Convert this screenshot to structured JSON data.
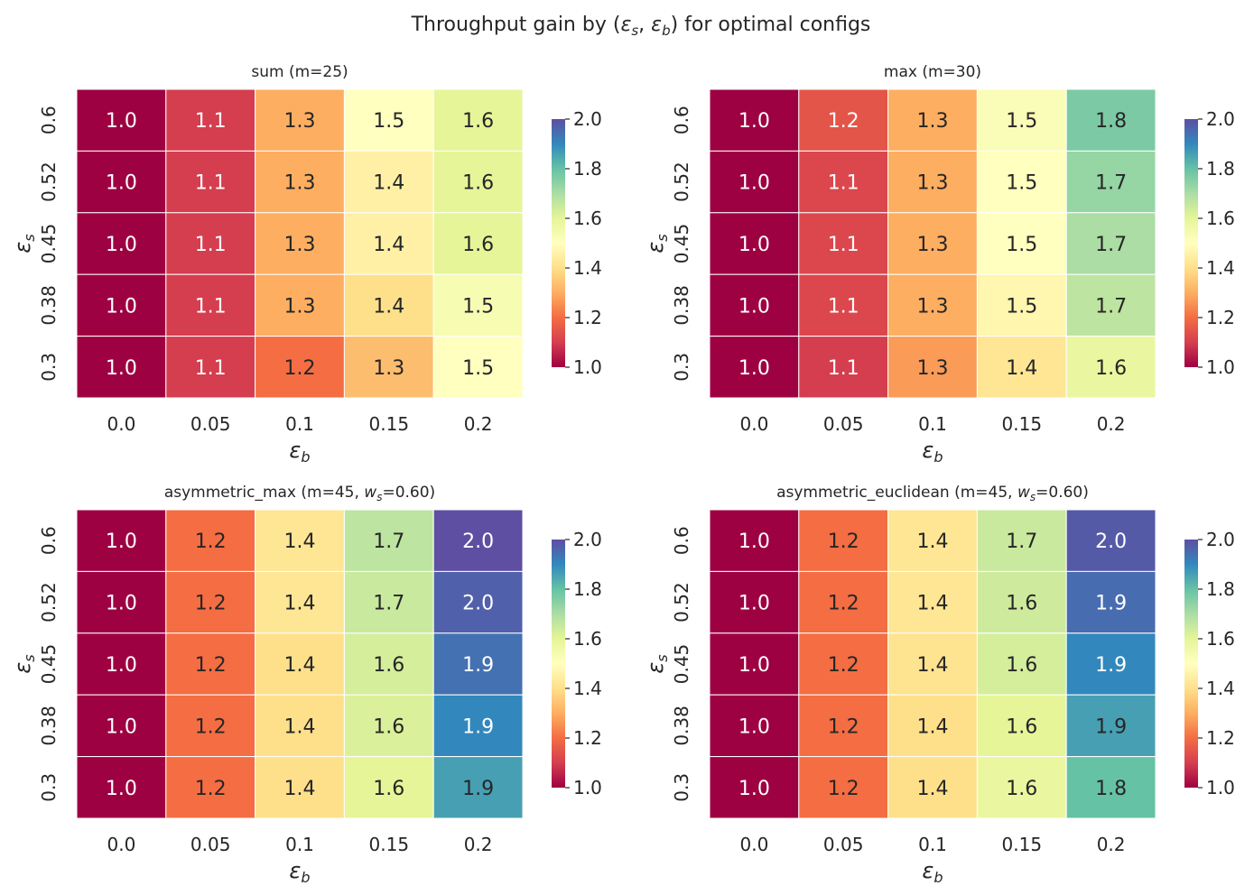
{
  "figure_title": {
    "prefix": "Throughput gain by (",
    "sym_s": "ε",
    "sub_s": "s",
    "sep": ", ",
    "sym_b": "ε",
    "sub_b": "b",
    "suffix": ") for optimal configs"
  },
  "colormap": {
    "name": "Spectral",
    "stops": [
      "#9e0142",
      "#d53e4f",
      "#f46d43",
      "#fdae61",
      "#fee08b",
      "#ffffbf",
      "#e6f598",
      "#abdda4",
      "#66c2a5",
      "#3288bd",
      "#5e4fa2"
    ]
  },
  "chart_data": [
    {
      "type": "heatmap",
      "title": {
        "prefix": "sum  (m=25)",
        "w_sym": "",
        "w_sub": "",
        "w_val": ""
      },
      "xlabel": {
        "sym": "ε",
        "sub": "b"
      },
      "ylabel": {
        "sym": "ε",
        "sub": "s"
      },
      "x_categories": [
        "0.0",
        "0.05",
        "0.1",
        "0.15",
        "0.2"
      ],
      "y_categories": [
        "0.6",
        "0.52",
        "0.45",
        "0.38",
        "0.3"
      ],
      "values": [
        [
          1.0,
          1.1,
          1.3,
          1.5,
          1.6
        ],
        [
          1.0,
          1.1,
          1.3,
          1.4,
          1.6
        ],
        [
          1.0,
          1.1,
          1.3,
          1.4,
          1.6
        ],
        [
          1.0,
          1.1,
          1.3,
          1.4,
          1.5
        ],
        [
          1.0,
          1.1,
          1.2,
          1.3,
          1.5
        ]
      ],
      "color_values": [
        [
          1.0,
          1.1,
          1.3,
          1.5,
          1.6
        ],
        [
          1.0,
          1.1,
          1.3,
          1.45,
          1.6
        ],
        [
          1.0,
          1.1,
          1.3,
          1.45,
          1.6
        ],
        [
          1.0,
          1.1,
          1.3,
          1.4,
          1.53
        ],
        [
          1.0,
          1.1,
          1.2,
          1.33,
          1.5
        ]
      ],
      "colorbar": {
        "ticks": [
          "1.0",
          "1.2",
          "1.4",
          "1.6",
          "1.8",
          "2.0"
        ],
        "range": [
          1.0,
          2.0
        ]
      },
      "show_xlabel": true
    },
    {
      "type": "heatmap",
      "title": {
        "prefix": "max  (m=30)",
        "w_sym": "",
        "w_sub": "",
        "w_val": ""
      },
      "xlabel": {
        "sym": "ε",
        "sub": "b"
      },
      "ylabel": {
        "sym": "ε",
        "sub": "s"
      },
      "x_categories": [
        "0.0",
        "0.05",
        "0.1",
        "0.15",
        "0.2"
      ],
      "y_categories": [
        "0.6",
        "0.52",
        "0.45",
        "0.38",
        "0.3"
      ],
      "values": [
        [
          1.0,
          1.2,
          1.3,
          1.5,
          1.8
        ],
        [
          1.0,
          1.1,
          1.3,
          1.5,
          1.7
        ],
        [
          1.0,
          1.1,
          1.3,
          1.5,
          1.7
        ],
        [
          1.0,
          1.1,
          1.3,
          1.5,
          1.7
        ],
        [
          1.0,
          1.1,
          1.3,
          1.4,
          1.6
        ]
      ],
      "color_values": [
        [
          1.0,
          1.15,
          1.3,
          1.52,
          1.77
        ],
        [
          1.0,
          1.12,
          1.3,
          1.5,
          1.73
        ],
        [
          1.0,
          1.12,
          1.3,
          1.5,
          1.7
        ],
        [
          1.0,
          1.12,
          1.3,
          1.47,
          1.67
        ],
        [
          1.0,
          1.1,
          1.27,
          1.42,
          1.58
        ]
      ],
      "colorbar": {
        "ticks": [
          "1.0",
          "1.2",
          "1.4",
          "1.6",
          "1.8",
          "2.0"
        ],
        "range": [
          1.0,
          2.0
        ]
      },
      "show_xlabel": true
    },
    {
      "type": "heatmap",
      "title": {
        "prefix": "asymmetric_max  (m=45, ",
        "w_sym": "w",
        "w_sub": "s",
        "w_val": "=0.60)"
      },
      "xlabel": {
        "sym": "ε",
        "sub": "b"
      },
      "ylabel": {
        "sym": "ε",
        "sub": "s"
      },
      "x_categories": [
        "0.0",
        "0.05",
        "0.1",
        "0.15",
        "0.2"
      ],
      "y_categories": [
        "0.6",
        "0.52",
        "0.45",
        "0.38",
        "0.3"
      ],
      "values": [
        [
          1.0,
          1.2,
          1.4,
          1.7,
          2.0
        ],
        [
          1.0,
          1.2,
          1.4,
          1.7,
          2.0
        ],
        [
          1.0,
          1.2,
          1.4,
          1.6,
          1.9
        ],
        [
          1.0,
          1.2,
          1.4,
          1.6,
          1.9
        ],
        [
          1.0,
          1.2,
          1.4,
          1.6,
          1.9
        ]
      ],
      "color_values": [
        [
          1.0,
          1.2,
          1.42,
          1.67,
          2.0
        ],
        [
          1.0,
          1.2,
          1.42,
          1.65,
          1.97
        ],
        [
          1.0,
          1.2,
          1.4,
          1.63,
          1.94
        ],
        [
          1.0,
          1.2,
          1.4,
          1.62,
          1.9
        ],
        [
          1.0,
          1.2,
          1.4,
          1.6,
          1.86
        ]
      ],
      "colorbar": {
        "ticks": [
          "1.0",
          "1.2",
          "1.4",
          "1.6",
          "1.8",
          "2.0"
        ],
        "range": [
          1.0,
          2.0
        ]
      },
      "show_xlabel": true
    },
    {
      "type": "heatmap",
      "title": {
        "prefix": "asymmetric_euclidean  (m=45, ",
        "w_sym": "w",
        "w_sub": "s",
        "w_val": "=0.60)"
      },
      "xlabel": {
        "sym": "ε",
        "sub": "b"
      },
      "ylabel": {
        "sym": "ε",
        "sub": "s"
      },
      "x_categories": [
        "0.0",
        "0.05",
        "0.1",
        "0.15",
        "0.2"
      ],
      "y_categories": [
        "0.6",
        "0.52",
        "0.45",
        "0.38",
        "0.3"
      ],
      "values": [
        [
          1.0,
          1.2,
          1.4,
          1.7,
          2.0
        ],
        [
          1.0,
          1.2,
          1.4,
          1.6,
          1.9
        ],
        [
          1.0,
          1.2,
          1.4,
          1.6,
          1.9
        ],
        [
          1.0,
          1.2,
          1.4,
          1.6,
          1.9
        ],
        [
          1.0,
          1.2,
          1.4,
          1.6,
          1.8
        ]
      ],
      "color_values": [
        [
          1.0,
          1.2,
          1.42,
          1.65,
          1.98
        ],
        [
          1.0,
          1.2,
          1.42,
          1.64,
          1.95
        ],
        [
          1.0,
          1.2,
          1.41,
          1.63,
          1.9
        ],
        [
          1.0,
          1.2,
          1.4,
          1.6,
          1.86
        ],
        [
          1.0,
          1.2,
          1.4,
          1.58,
          1.8
        ]
      ],
      "colorbar": {
        "ticks": [
          "1.0",
          "1.2",
          "1.4",
          "1.6",
          "1.8",
          "2.0"
        ],
        "range": [
          1.0,
          2.0
        ]
      },
      "show_xlabel": true
    }
  ]
}
